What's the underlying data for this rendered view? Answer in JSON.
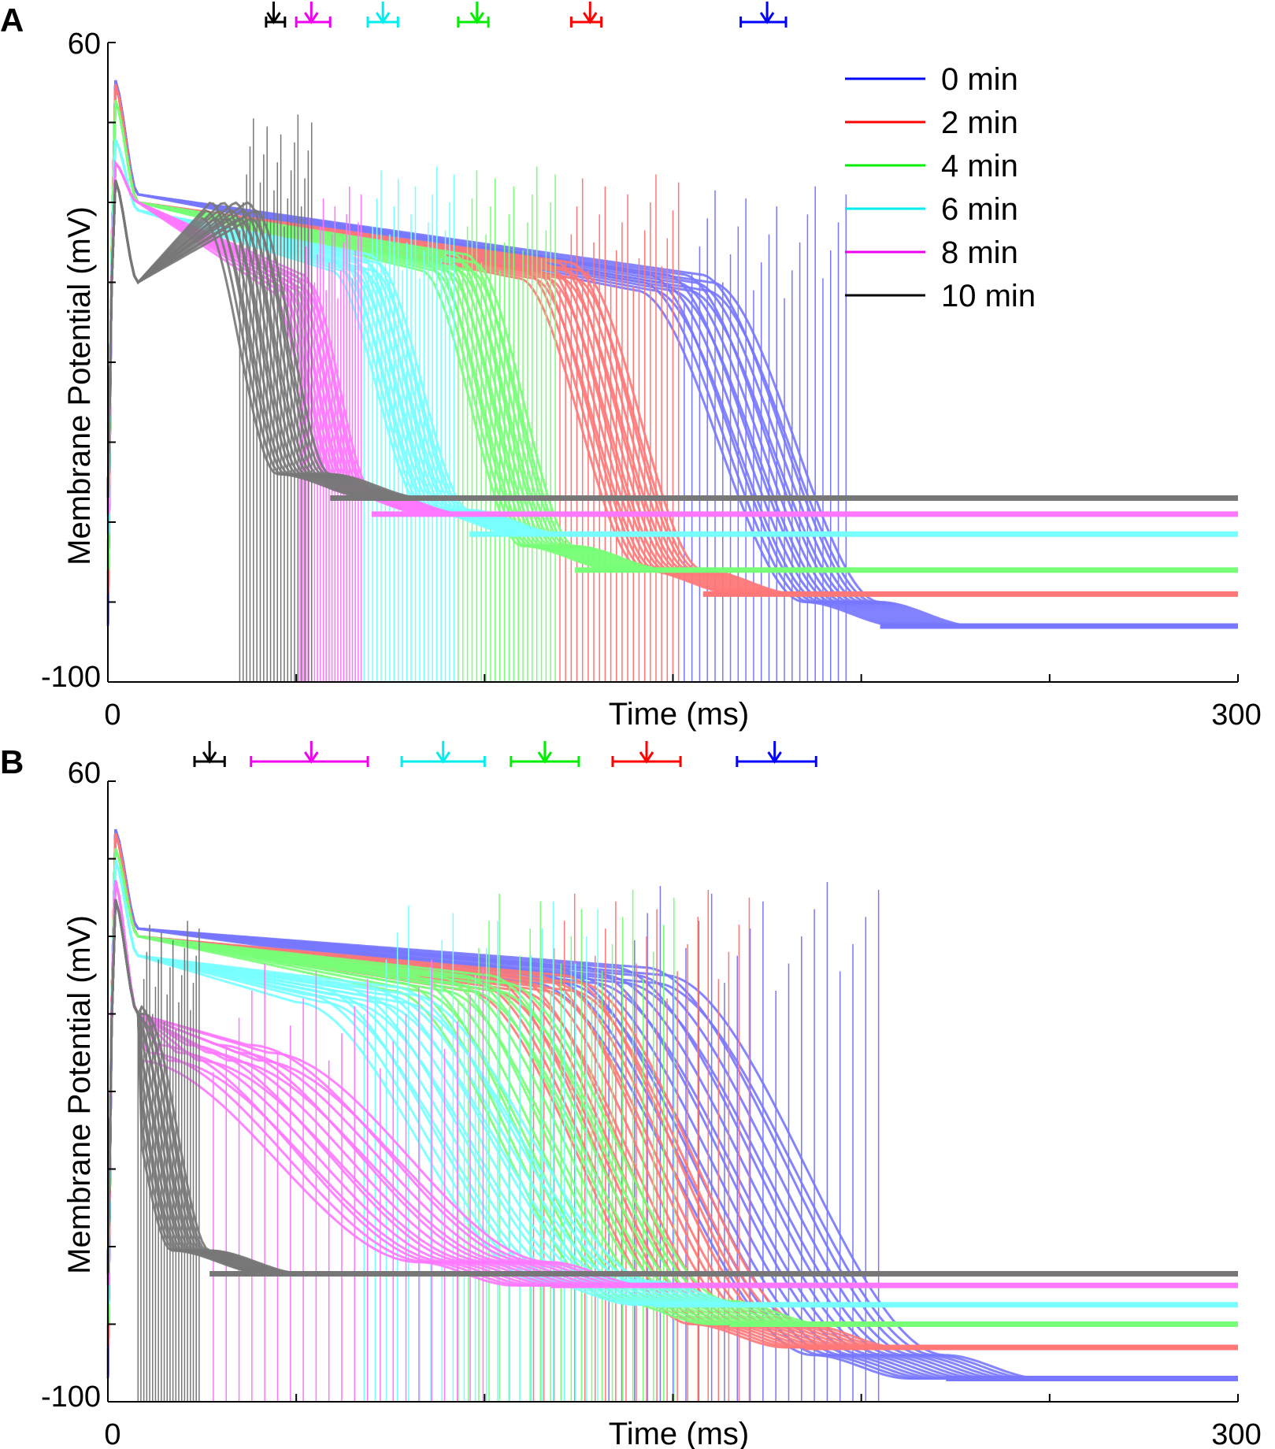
{
  "chart_data": [
    {
      "type": "line",
      "panel_label": "A",
      "xlabel": "Time (ms)",
      "ylabel": "Membrane Potential (mV)",
      "xlim": [
        0,
        300
      ],
      "ylim": [
        -100,
        60
      ],
      "x_tick_labels": [
        "0",
        "300"
      ],
      "y_tick_labels": [
        "60",
        "-100"
      ],
      "legend_position": "top-right",
      "series": [
        {
          "name": "0 min",
          "color": "#0000ff",
          "shade": "#7777ff",
          "peak": 51,
          "plateau_start": 22,
          "plateau_end": 0,
          "repol_start": 150,
          "repol_end": 195,
          "rest": -86,
          "band_width": 20,
          "apd_mean": 175,
          "apd_low": 168,
          "apd_high": 180
        },
        {
          "name": "2 min",
          "color": "#ff0000",
          "shade": "#ff7777",
          "peak": 50,
          "plateau_start": 20,
          "plateau_end": 3,
          "repol_start": 117,
          "repol_end": 150,
          "rest": -78,
          "band_width": 16,
          "apd_mean": 128,
          "apd_low": 123,
          "apd_high": 131
        },
        {
          "name": "4 min",
          "color": "#00ee00",
          "shade": "#77ff77",
          "peak": 46,
          "plateau_start": 20,
          "plateau_end": 5,
          "repol_start": 90,
          "repol_end": 117,
          "rest": -72,
          "band_width": 14,
          "apd_mean": 98,
          "apd_low": 93,
          "apd_high": 101
        },
        {
          "name": "6 min",
          "color": "#00eeee",
          "shade": "#77ffff",
          "peak": 36,
          "plateau_start": 18,
          "plateau_end": 5,
          "repol_start": 65,
          "repol_end": 90,
          "rest": -63,
          "band_width": 12,
          "apd_mean": 73,
          "apd_low": 69,
          "apd_high": 77
        },
        {
          "name": "8 min",
          "color": "#ee00ee",
          "shade": "#ff77ff",
          "peak": 30,
          "plateau_start": 20,
          "plateau_end": 0,
          "repol_start": 48,
          "repol_end": 65,
          "rest": -58,
          "band_width": 10,
          "apd_mean": 54,
          "apd_low": 50,
          "apd_high": 59
        },
        {
          "name": "10 min",
          "color": "#000000",
          "shade": "#777777",
          "peak": 26,
          "plateau_start": 0,
          "plateau_end": 18,
          "repol_start": 32,
          "repol_end": 52,
          "rest": -54,
          "band_width": 14,
          "apd_mean": 44,
          "apd_low": 42,
          "apd_high": 47
        }
      ]
    },
    {
      "type": "line",
      "panel_label": "B",
      "xlabel": "Time (ms)",
      "ylabel": "Membrane Potential (mV)",
      "xlim": [
        0,
        300
      ],
      "ylim": [
        -100,
        60
      ],
      "x_tick_labels": [
        "0",
        "300"
      ],
      "y_tick_labels": [
        "60",
        "-100"
      ],
      "series": [
        {
          "name": "0 min",
          "color": "#0000ff",
          "shade": "#7777ff",
          "peak": 48,
          "plateau_start": 22,
          "plateau_end": 10,
          "repol_start": 130,
          "repol_end": 205,
          "rest": -94,
          "band_width": 35,
          "apd_mean": 177,
          "apd_low": 167,
          "apd_high": 188
        },
        {
          "name": "2 min",
          "color": "#ff0000",
          "shade": "#ff7777",
          "peak": 47,
          "plateau_start": 20,
          "plateau_end": 8,
          "repol_start": 110,
          "repol_end": 170,
          "rest": -86,
          "band_width": 30,
          "apd_mean": 143,
          "apd_low": 134,
          "apd_high": 152
        },
        {
          "name": "4 min",
          "color": "#00ee00",
          "shade": "#77ff77",
          "peak": 43,
          "plateau_start": 20,
          "plateau_end": 8,
          "repol_start": 90,
          "repol_end": 150,
          "rest": -80,
          "band_width": 30,
          "apd_mean": 116,
          "apd_low": 107,
          "apd_high": 125
        },
        {
          "name": "6 min",
          "color": "#00eeee",
          "shade": "#77ffff",
          "peak": 40,
          "plateau_start": 15,
          "plateau_end": 5,
          "repol_start": 65,
          "repol_end": 130,
          "rest": -75,
          "band_width": 30,
          "apd_mean": 89,
          "apd_low": 78,
          "apd_high": 100
        },
        {
          "name": "8 min",
          "color": "#ee00ee",
          "shade": "#ff77ff",
          "peak": 35,
          "plateau_start": 0,
          "plateau_end": -10,
          "repol_start": 25,
          "repol_end": 100,
          "rest": -70,
          "band_width": 35,
          "apd_mean": 54,
          "apd_low": 38,
          "apd_high": 69
        },
        {
          "name": "10 min",
          "color": "#000000",
          "shade": "#777777",
          "peak": 30,
          "plateau_start": 0,
          "plateau_end": 0,
          "repol_start": 5,
          "repol_end": 22,
          "rest": -67,
          "band_width": 10,
          "apd_mean": 27,
          "apd_low": 23,
          "apd_high": 31
        }
      ]
    }
  ]
}
